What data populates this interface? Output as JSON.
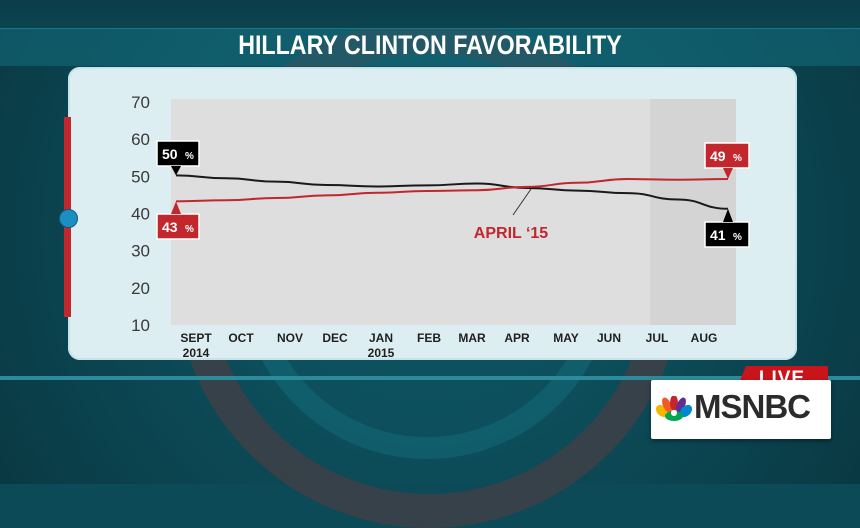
{
  "title": "HILLARY CLINTON FAVORABILITY",
  "broadcast": {
    "live_label": "LIVE",
    "network": "MSNBC"
  },
  "colors": {
    "favorable": "#c1272d",
    "unfavorable": "#1a1a1a",
    "accent": "#c8141b"
  },
  "chart_data": {
    "type": "line",
    "title": "HILLARY CLINTON FAVORABILITY",
    "xlabel": "",
    "ylabel": "",
    "ylim": [
      10,
      70
    ],
    "yticks": [
      70,
      60,
      50,
      40,
      30,
      20,
      10
    ],
    "categories": [
      "SEPT 2014",
      "OCT",
      "NOV",
      "DEC",
      "JAN 2015",
      "FEB",
      "MAR",
      "APR",
      "MAY",
      "JUN",
      "JUL",
      "AUG"
    ],
    "x_tick_labels": [
      [
        "SEPT",
        "2014"
      ],
      [
        "OCT"
      ],
      [
        "NOV"
      ],
      [
        "DEC"
      ],
      [
        "JAN",
        "2015"
      ],
      [
        "FEB"
      ],
      [
        "MAR"
      ],
      [
        "APR"
      ],
      [
        "MAY"
      ],
      [
        "JUN"
      ],
      [
        "JUL"
      ],
      [
        "AUG"
      ]
    ],
    "grid": false,
    "series": [
      {
        "color": "#1a1a1a",
        "values": [
          50,
          49.2,
          48.3,
          47.4,
          47.0,
          47.3,
          47.8,
          46.6,
          45.9,
          45.2,
          43.5,
          41
        ]
      },
      {
        "color": "#c1272d",
        "values": [
          43,
          43.3,
          43.9,
          44.6,
          45.3,
          45.8,
          46.0,
          46.9,
          48.0,
          49.0,
          48.8,
          49
        ]
      }
    ],
    "callouts": [
      {
        "text": "50",
        "unit": "%",
        "color": "#000000"
      },
      {
        "text": "43",
        "unit": "%",
        "color": "#c1272d"
      },
      {
        "text": "49",
        "unit": "%",
        "color": "#c1272d"
      },
      {
        "text": "41",
        "unit": "%",
        "color": "#000000"
      }
    ],
    "annotation": "APRIL ‘15"
  }
}
